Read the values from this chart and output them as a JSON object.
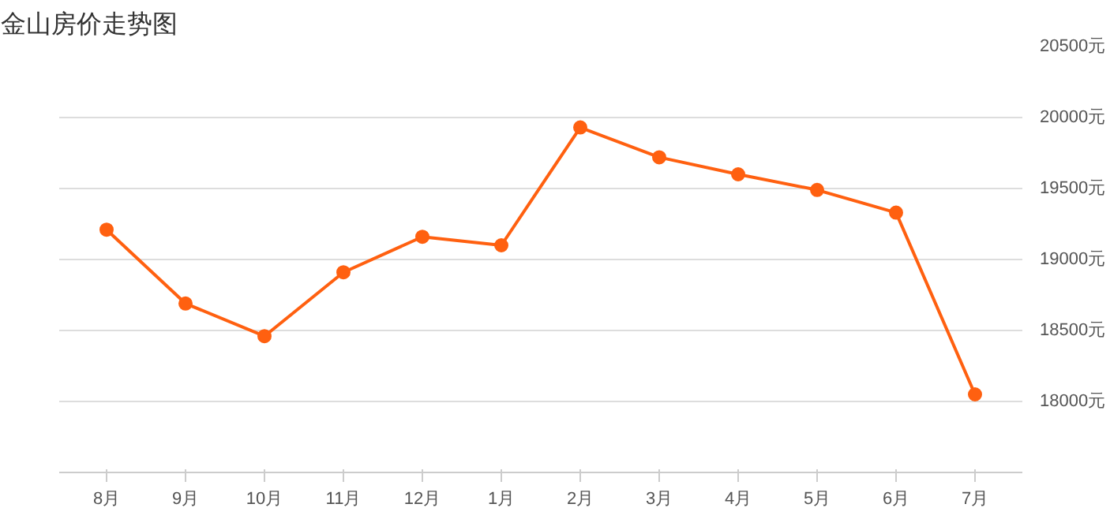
{
  "chart_data": {
    "type": "line",
    "title": "金山房价走势图",
    "categories": [
      "8月",
      "9月",
      "10月",
      "11月",
      "12月",
      "1月",
      "2月",
      "3月",
      "4月",
      "5月",
      "6月",
      "7月"
    ],
    "series": [
      {
        "color": "#ff6010",
        "values": [
          19210,
          18690,
          18460,
          18910,
          19160,
          19100,
          19930,
          19720,
          19600,
          19490,
          19330,
          18050
        ]
      }
    ],
    "ylim": [
      17500,
      20500
    ],
    "yticks": [
      {
        "value": 18000,
        "label": "18000元"
      },
      {
        "value": 18500,
        "label": "18500元"
      },
      {
        "value": 19000,
        "label": "19000元"
      },
      {
        "value": 19500,
        "label": "19500元"
      },
      {
        "value": 20000,
        "label": "20000元"
      },
      {
        "value": 20500,
        "label": "20500元"
      }
    ],
    "grid": "y",
    "marker": "circle",
    "line_style": "solid"
  }
}
